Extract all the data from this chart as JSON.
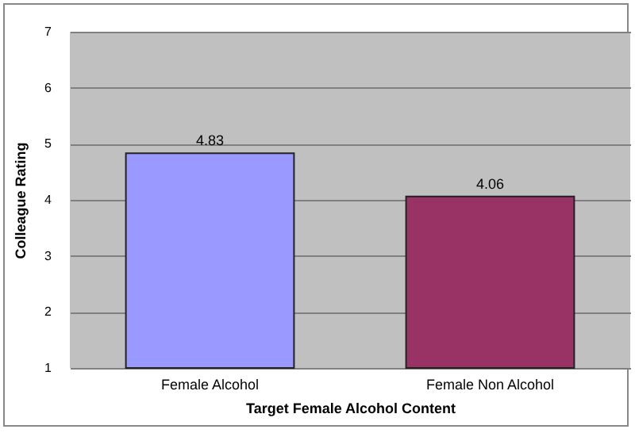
{
  "chart_data": {
    "type": "bar",
    "xlabel": "Target Female Alcohol Content",
    "ylabel": "Colleague Rating",
    "categories": [
      "Female Alcohol",
      "Female Non Alcohol"
    ],
    "values": [
      4.83,
      4.06
    ],
    "colors": [
      "#9999ff",
      "#993366"
    ],
    "ylim": [
      1,
      7
    ],
    "yticks": [
      1,
      2,
      3,
      4,
      5,
      6,
      7
    ],
    "grid": "y",
    "data_labels": true
  }
}
